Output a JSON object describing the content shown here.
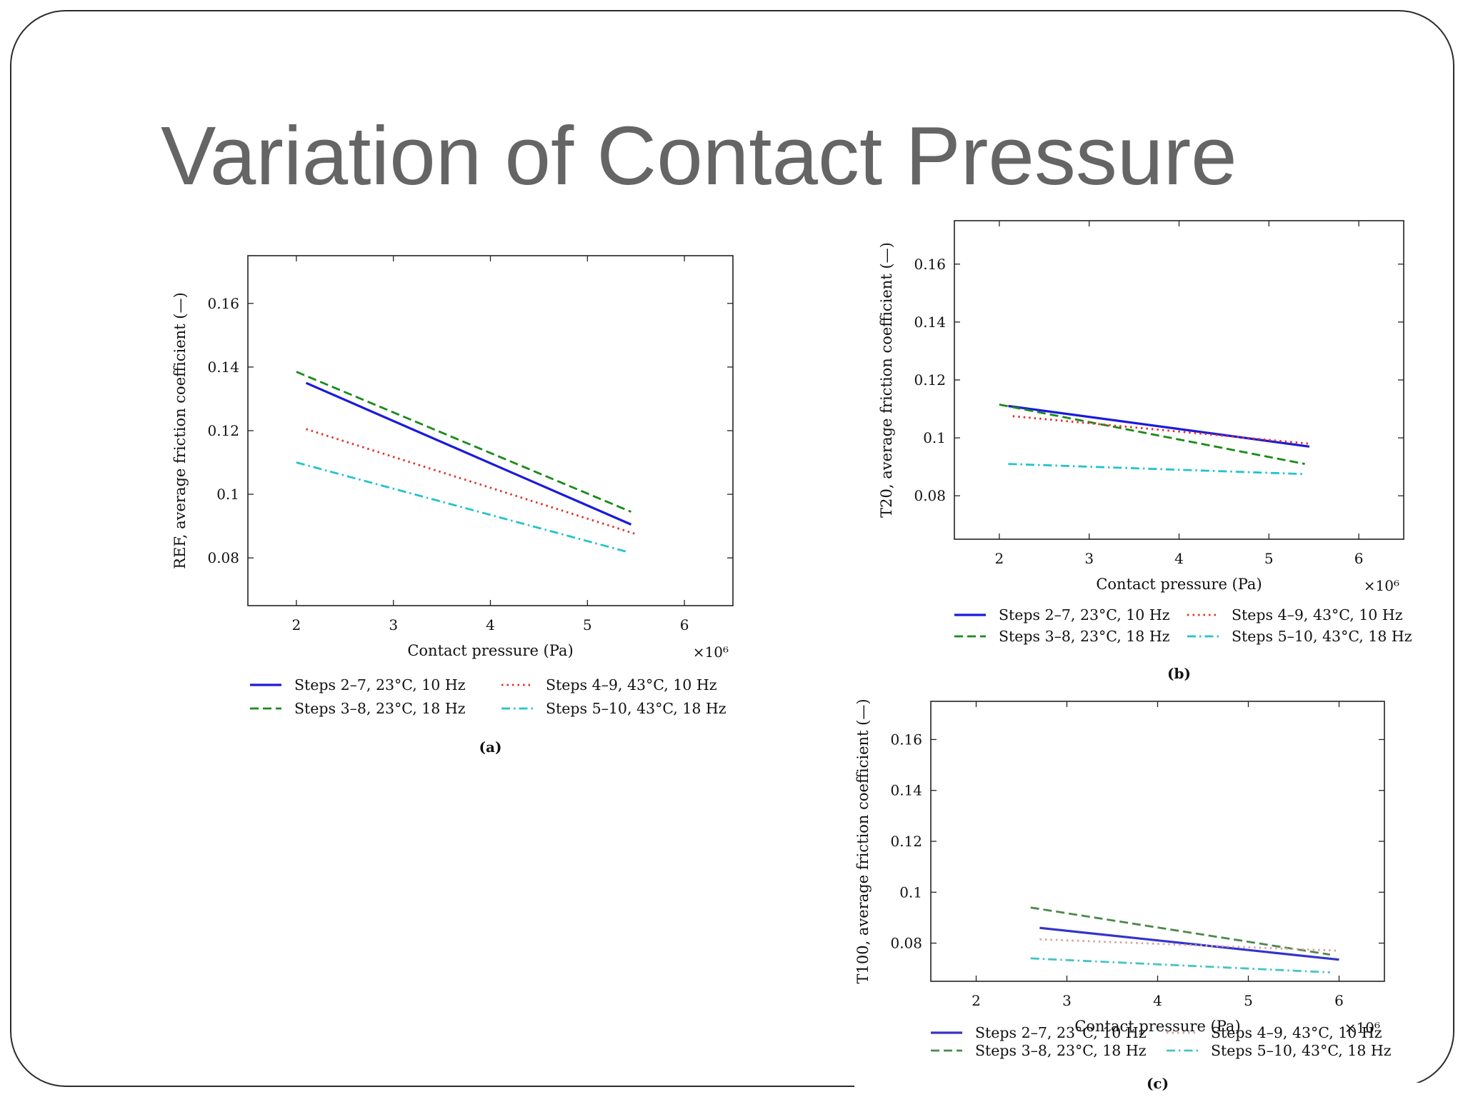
{
  "slide": {
    "title": "Variation of Contact Pressure"
  },
  "colors": {
    "title_text": "#656565",
    "frame": "#2b2b2b",
    "series_blue": "#1a1adb",
    "series_green": "#1a8a1a",
    "series_red": "#e0302a",
    "series_cyan": "#22c4cc"
  },
  "legend_labels": [
    "Steps 2–7, 23°C, 10 Hz",
    "Steps 3–8, 23°C, 18 Hz",
    "Steps 4–9, 43°C, 10 Hz",
    "Steps 5–10, 43°C, 18 Hz"
  ],
  "chart_data": [
    {
      "id": "a",
      "panel_label": "(a)",
      "type": "line",
      "title": "",
      "xlabel": "Contact pressure (Pa)",
      "xscale_label": "×10⁶",
      "ylabel": "REF, average friction coefficient (—)",
      "xlim": [
        1.5,
        6.5
      ],
      "ylim": [
        0.065,
        0.175
      ],
      "xticks": [
        2,
        3,
        4,
        5,
        6
      ],
      "yticks": [
        0.08,
        0.1,
        0.12,
        0.14,
        0.16
      ],
      "xtick_labels": [
        "2",
        "3",
        "4",
        "5",
        "6"
      ],
      "ytick_labels": [
        "0.08",
        "0.1",
        "0.12",
        "0.14",
        "0.16"
      ],
      "legend_position": "below",
      "series": [
        {
          "name": "Steps 2–7, 23°C, 10 Hz",
          "color": "#1a1adb",
          "style": "solid",
          "x": [
            2.1,
            5.45
          ],
          "y": [
            0.135,
            0.0905
          ]
        },
        {
          "name": "Steps 3–8, 23°C, 18 Hz",
          "color": "#1a8a1a",
          "style": "dashed",
          "x": [
            2.0,
            5.45
          ],
          "y": [
            0.1385,
            0.0945
          ]
        },
        {
          "name": "Steps 4–9, 43°C, 10 Hz",
          "color": "#e0302a",
          "style": "dotted",
          "x": [
            2.1,
            5.5
          ],
          "y": [
            0.1205,
            0.0875
          ]
        },
        {
          "name": "Steps 5–10, 43°C, 18 Hz",
          "color": "#22c4cc",
          "style": "dashdot",
          "x": [
            2.0,
            5.4
          ],
          "y": [
            0.11,
            0.082
          ]
        }
      ]
    },
    {
      "id": "b",
      "panel_label": "(b)",
      "type": "line",
      "title": "",
      "xlabel": "Contact pressure (Pa)",
      "xscale_label": "×10⁶",
      "ylabel": "T20, average friction coefficient (—)",
      "xlim": [
        1.5,
        6.5
      ],
      "ylim": [
        0.065,
        0.175
      ],
      "xticks": [
        2,
        3,
        4,
        5,
        6
      ],
      "yticks": [
        0.08,
        0.1,
        0.12,
        0.14,
        0.16
      ],
      "xtick_labels": [
        "2",
        "3",
        "4",
        "5",
        "6"
      ],
      "ytick_labels": [
        "0.08",
        "0.1",
        "0.12",
        "0.14",
        "0.16"
      ],
      "legend_position": "below",
      "series": [
        {
          "name": "Steps 2–7, 23°C, 10 Hz",
          "color": "#1a1adb",
          "style": "solid",
          "x": [
            2.1,
            5.45
          ],
          "y": [
            0.111,
            0.097
          ]
        },
        {
          "name": "Steps 3–8, 23°C, 18 Hz",
          "color": "#1a8a1a",
          "style": "dashed",
          "x": [
            2.0,
            5.4
          ],
          "y": [
            0.1115,
            0.091
          ]
        },
        {
          "name": "Steps 4–9, 43°C, 10 Hz",
          "color": "#e0302a",
          "style": "dotted",
          "x": [
            2.15,
            5.45
          ],
          "y": [
            0.1075,
            0.098
          ]
        },
        {
          "name": "Steps 5–10, 43°C, 18 Hz",
          "color": "#22c4cc",
          "style": "dashdot",
          "x": [
            2.1,
            5.4
          ],
          "y": [
            0.091,
            0.0875
          ]
        }
      ]
    },
    {
      "id": "c",
      "panel_label": "(c)",
      "type": "line",
      "title": "",
      "xlabel": "Contact pressure (Pa)",
      "xscale_label": "×10⁶",
      "ylabel": "T100, average friction coefficient (—)",
      "xlim": [
        1.5,
        6.5
      ],
      "ylim": [
        0.065,
        0.175
      ],
      "xticks": [
        2,
        3,
        4,
        5,
        6
      ],
      "yticks": [
        0.08,
        0.1,
        0.12,
        0.14,
        0.16
      ],
      "xtick_labels": [
        "2",
        "3",
        "4",
        "5",
        "6"
      ],
      "ytick_labels": [
        "0.08",
        "0.1",
        "0.12",
        "0.14",
        "0.16"
      ],
      "legend_position": "below",
      "series": [
        {
          "name": "Steps 2–7, 23°C, 10 Hz",
          "color": "#3333cc",
          "style": "solid",
          "x": [
            2.7,
            6.0
          ],
          "y": [
            0.086,
            0.0735
          ]
        },
        {
          "name": "Steps 3–8, 23°C, 18 Hz",
          "color": "#4a8a4a",
          "style": "dashed",
          "x": [
            2.6,
            5.9
          ],
          "y": [
            0.094,
            0.0755
          ]
        },
        {
          "name": "Steps 4–9, 43°C, 10 Hz",
          "color": "#d9a0a0",
          "style": "dotted",
          "x": [
            2.7,
            6.0
          ],
          "y": [
            0.0815,
            0.077
          ]
        },
        {
          "name": "Steps 5–10, 43°C, 18 Hz",
          "color": "#44c4c4",
          "style": "dashdot",
          "x": [
            2.6,
            5.9
          ],
          "y": [
            0.074,
            0.0685
          ]
        }
      ]
    }
  ]
}
